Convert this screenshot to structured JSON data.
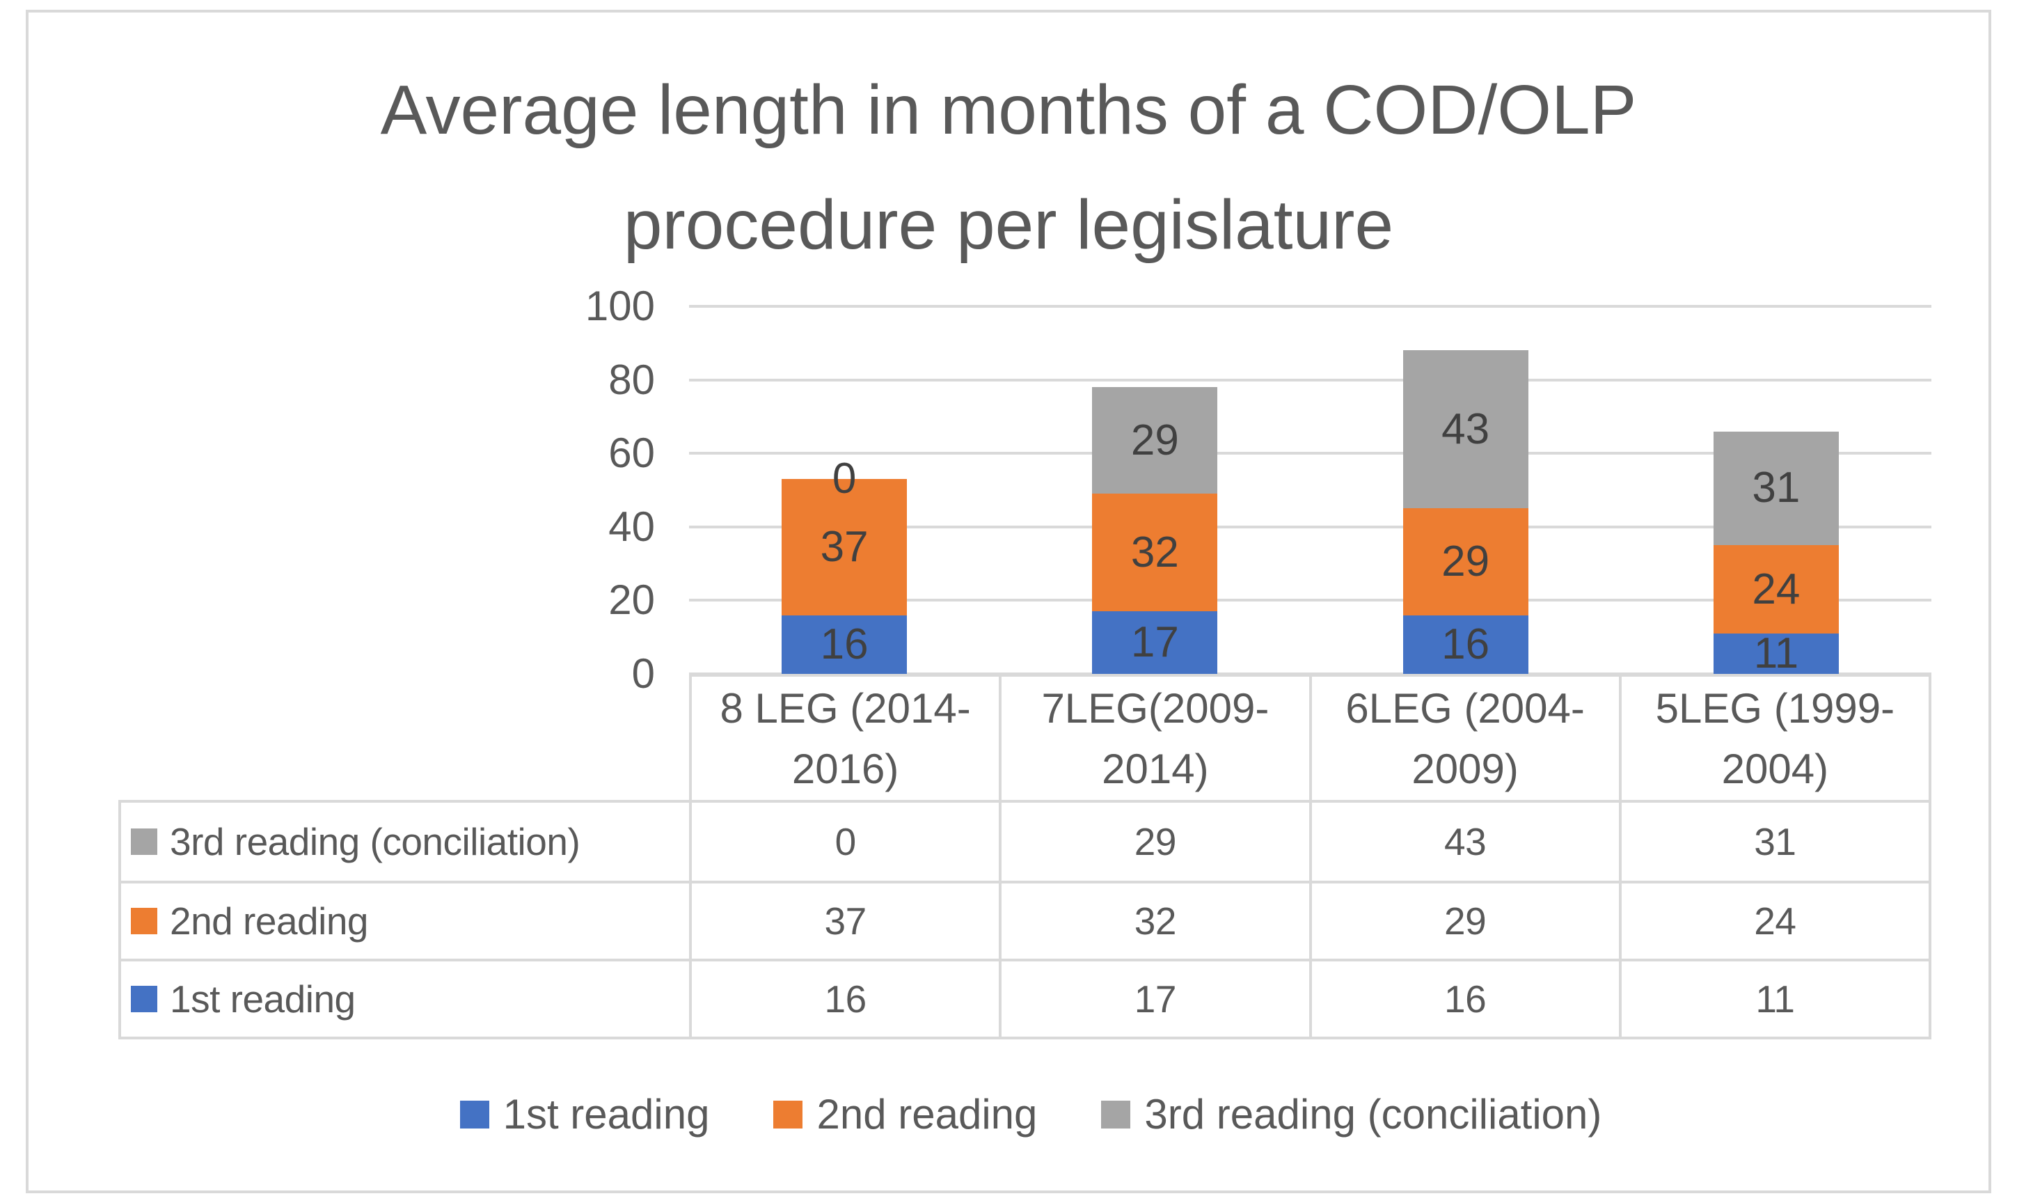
{
  "chart_data": {
    "type": "bar",
    "stacked": true,
    "title": "Average length in months of a COD/OLP procedure per legislature",
    "categories": [
      "8 LEG (2014-2016)",
      "7LEG(2009-2014)",
      "6LEG (2004-2009)",
      "5LEG  (1999-2004)"
    ],
    "series": [
      {
        "name": "1st reading",
        "color": "#4472C4",
        "values": [
          16,
          17,
          16,
          11
        ]
      },
      {
        "name": "2nd reading",
        "color": "#ED7D31",
        "values": [
          37,
          32,
          29,
          24
        ]
      },
      {
        "name": "3rd reading (conciliation)",
        "color": "#A5A5A5",
        "values": [
          0,
          29,
          43,
          31
        ]
      }
    ],
    "ylim": [
      0,
      100
    ],
    "yticks": [
      0,
      20,
      40,
      60,
      80,
      100
    ],
    "grid": true,
    "legend_position": "bottom",
    "data_table_shown": true,
    "table_row_order": [
      "3rd reading (conciliation)",
      "2nd reading",
      "1st reading"
    ]
  },
  "styles": {
    "text_color": "#595959",
    "bar_label_color": "#404040",
    "grid_color": "#D9D9D9",
    "background": "#FFFFFF"
  }
}
